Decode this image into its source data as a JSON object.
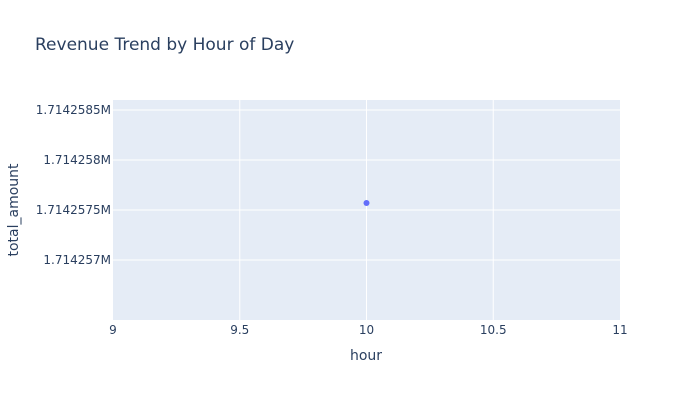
{
  "chart_data": {
    "type": "scatter",
    "title": "Revenue Trend by Hour of Day",
    "xlabel": "hour",
    "ylabel": "total_amount",
    "xlim": [
      9,
      11
    ],
    "ylim": [
      1714256.4,
      1714258.6
    ],
    "x_ticks": [
      9,
      9.5,
      10,
      10.5,
      11
    ],
    "x_tick_labels": [
      "9",
      "9.5",
      "10",
      "10.5",
      "11"
    ],
    "y_ticks": [
      1714257,
      1714257.5,
      1714258,
      1714258.5
    ],
    "y_tick_labels": [
      "1.714257M",
      "1.7142575M",
      "1.714258M",
      "1.7142585M"
    ],
    "grid": true,
    "series": [
      {
        "x": [
          10
        ],
        "y": [
          1714257.57
        ],
        "color": "#636efa"
      }
    ],
    "colors": {
      "plot_background": "#e5ecf6",
      "grid": "#ffffff",
      "text": "#2a3f5f",
      "marker": "#636efa"
    }
  }
}
